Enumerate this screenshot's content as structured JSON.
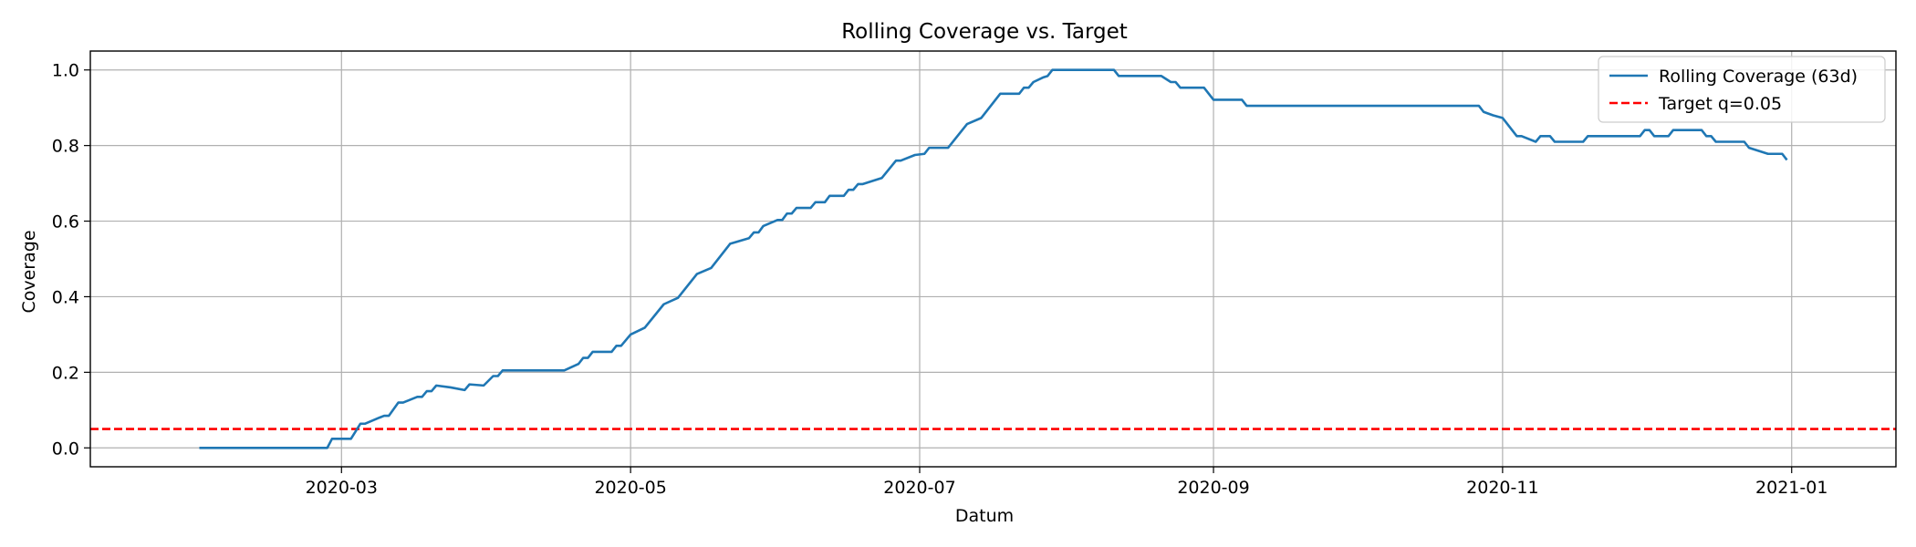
{
  "chart_data": {
    "type": "line",
    "title": "Rolling Coverage vs. Target",
    "xlabel": "Datum",
    "ylabel": "Coverage",
    "xlim": [
      "2020-01-08",
      "2021-01-23"
    ],
    "ylim": [
      -0.05,
      1.05
    ],
    "x_ticks": [
      "2020-03-01",
      "2020-05-01",
      "2020-07-01",
      "2020-09-01",
      "2020-11-01",
      "2021-01-01"
    ],
    "x_tick_labels": [
      "2020-03",
      "2020-05",
      "2020-07",
      "2020-09",
      "2020-11",
      "2021-01"
    ],
    "y_ticks": [
      0.0,
      0.2,
      0.4,
      0.6,
      0.8,
      1.0
    ],
    "y_tick_labels": [
      "0.0",
      "0.2",
      "0.4",
      "0.6",
      "0.8",
      "1.0"
    ],
    "grid": true,
    "legend_position": "top-right",
    "series": [
      {
        "name": "Rolling Coverage (63d)",
        "color": "#1f77b4",
        "style": "solid",
        "points": [
          [
            "2020-01-31",
            0.0
          ],
          [
            "2020-02-27",
            0.0
          ],
          [
            "2020-02-28",
            0.024
          ],
          [
            "2020-03-03",
            0.024
          ],
          [
            "2020-03-05",
            0.064
          ],
          [
            "2020-03-06",
            0.064
          ],
          [
            "2020-03-09",
            0.08
          ],
          [
            "2020-03-10",
            0.085
          ],
          [
            "2020-03-11",
            0.085
          ],
          [
            "2020-03-13",
            0.12
          ],
          [
            "2020-03-14",
            0.12
          ],
          [
            "2020-03-17",
            0.135
          ],
          [
            "2020-03-18",
            0.135
          ],
          [
            "2020-03-19",
            0.15
          ],
          [
            "2020-03-20",
            0.15
          ],
          [
            "2020-03-21",
            0.165
          ],
          [
            "2020-03-24",
            0.16
          ],
          [
            "2020-03-27",
            0.153
          ],
          [
            "2020-03-28",
            0.168
          ],
          [
            "2020-03-31",
            0.165
          ],
          [
            "2020-04-02",
            0.19
          ],
          [
            "2020-04-03",
            0.19
          ],
          [
            "2020-04-04",
            0.205
          ],
          [
            "2020-04-17",
            0.205
          ],
          [
            "2020-04-20",
            0.222
          ],
          [
            "2020-04-21",
            0.238
          ],
          [
            "2020-04-22",
            0.238
          ],
          [
            "2020-04-23",
            0.254
          ],
          [
            "2020-04-27",
            0.254
          ],
          [
            "2020-04-28",
            0.27
          ],
          [
            "2020-04-29",
            0.27
          ],
          [
            "2020-05-01",
            0.3
          ],
          [
            "2020-05-04",
            0.318
          ],
          [
            "2020-05-08",
            0.38
          ],
          [
            "2020-05-11",
            0.397
          ],
          [
            "2020-05-15",
            0.46
          ],
          [
            "2020-05-18",
            0.476
          ],
          [
            "2020-05-22",
            0.54
          ],
          [
            "2020-05-26",
            0.555
          ],
          [
            "2020-05-27",
            0.57
          ],
          [
            "2020-05-28",
            0.57
          ],
          [
            "2020-05-29",
            0.587
          ],
          [
            "2020-06-01",
            0.603
          ],
          [
            "2020-06-02",
            0.603
          ],
          [
            "2020-06-03",
            0.62
          ],
          [
            "2020-06-04",
            0.62
          ],
          [
            "2020-06-05",
            0.635
          ],
          [
            "2020-06-08",
            0.635
          ],
          [
            "2020-06-09",
            0.65
          ],
          [
            "2020-06-11",
            0.65
          ],
          [
            "2020-06-12",
            0.667
          ],
          [
            "2020-06-15",
            0.667
          ],
          [
            "2020-06-16",
            0.683
          ],
          [
            "2020-06-17",
            0.683
          ],
          [
            "2020-06-18",
            0.698
          ],
          [
            "2020-06-19",
            0.698
          ],
          [
            "2020-06-23",
            0.714
          ],
          [
            "2020-06-26",
            0.76
          ],
          [
            "2020-06-27",
            0.76
          ],
          [
            "2020-06-30",
            0.775
          ],
          [
            "2020-07-02",
            0.778
          ],
          [
            "2020-07-03",
            0.794
          ],
          [
            "2020-07-07",
            0.794
          ],
          [
            "2020-07-11",
            0.857
          ],
          [
            "2020-07-14",
            0.873
          ],
          [
            "2020-07-18",
            0.937
          ],
          [
            "2020-07-22",
            0.937
          ],
          [
            "2020-07-23",
            0.953
          ],
          [
            "2020-07-24",
            0.953
          ],
          [
            "2020-07-25",
            0.968
          ],
          [
            "2020-07-27",
            0.98
          ],
          [
            "2020-07-28",
            0.984
          ],
          [
            "2020-07-29",
            1.0
          ],
          [
            "2020-08-11",
            1.0
          ],
          [
            "2020-08-12",
            0.984
          ],
          [
            "2020-08-21",
            0.984
          ],
          [
            "2020-08-23",
            0.968
          ],
          [
            "2020-08-24",
            0.968
          ],
          [
            "2020-08-25",
            0.953
          ],
          [
            "2020-08-30",
            0.953
          ],
          [
            "2020-08-31",
            0.937
          ],
          [
            "2020-09-01",
            0.921
          ],
          [
            "2020-09-07",
            0.921
          ],
          [
            "2020-09-08",
            0.905
          ],
          [
            "2020-10-27",
            0.905
          ],
          [
            "2020-10-28",
            0.889
          ],
          [
            "2020-10-30",
            0.88
          ],
          [
            "2020-11-01",
            0.873
          ],
          [
            "2020-11-04",
            0.825
          ],
          [
            "2020-11-05",
            0.825
          ],
          [
            "2020-11-08",
            0.81
          ],
          [
            "2020-11-09",
            0.825
          ],
          [
            "2020-11-11",
            0.825
          ],
          [
            "2020-11-12",
            0.81
          ],
          [
            "2020-11-18",
            0.81
          ],
          [
            "2020-11-19",
            0.825
          ],
          [
            "2020-11-30",
            0.825
          ],
          [
            "2020-12-01",
            0.841
          ],
          [
            "2020-12-02",
            0.841
          ],
          [
            "2020-12-03",
            0.825
          ],
          [
            "2020-12-06",
            0.825
          ],
          [
            "2020-12-07",
            0.841
          ],
          [
            "2020-12-13",
            0.841
          ],
          [
            "2020-12-14",
            0.825
          ],
          [
            "2020-12-15",
            0.825
          ],
          [
            "2020-12-16",
            0.81
          ],
          [
            "2020-12-22",
            0.81
          ],
          [
            "2020-12-23",
            0.794
          ],
          [
            "2020-12-27",
            0.778
          ],
          [
            "2020-12-30",
            0.778
          ],
          [
            "2020-12-31",
            0.762
          ]
        ]
      },
      {
        "name": "Target q=0.05",
        "color": "#ff0000",
        "style": "dashed",
        "y": 0.05
      }
    ]
  }
}
